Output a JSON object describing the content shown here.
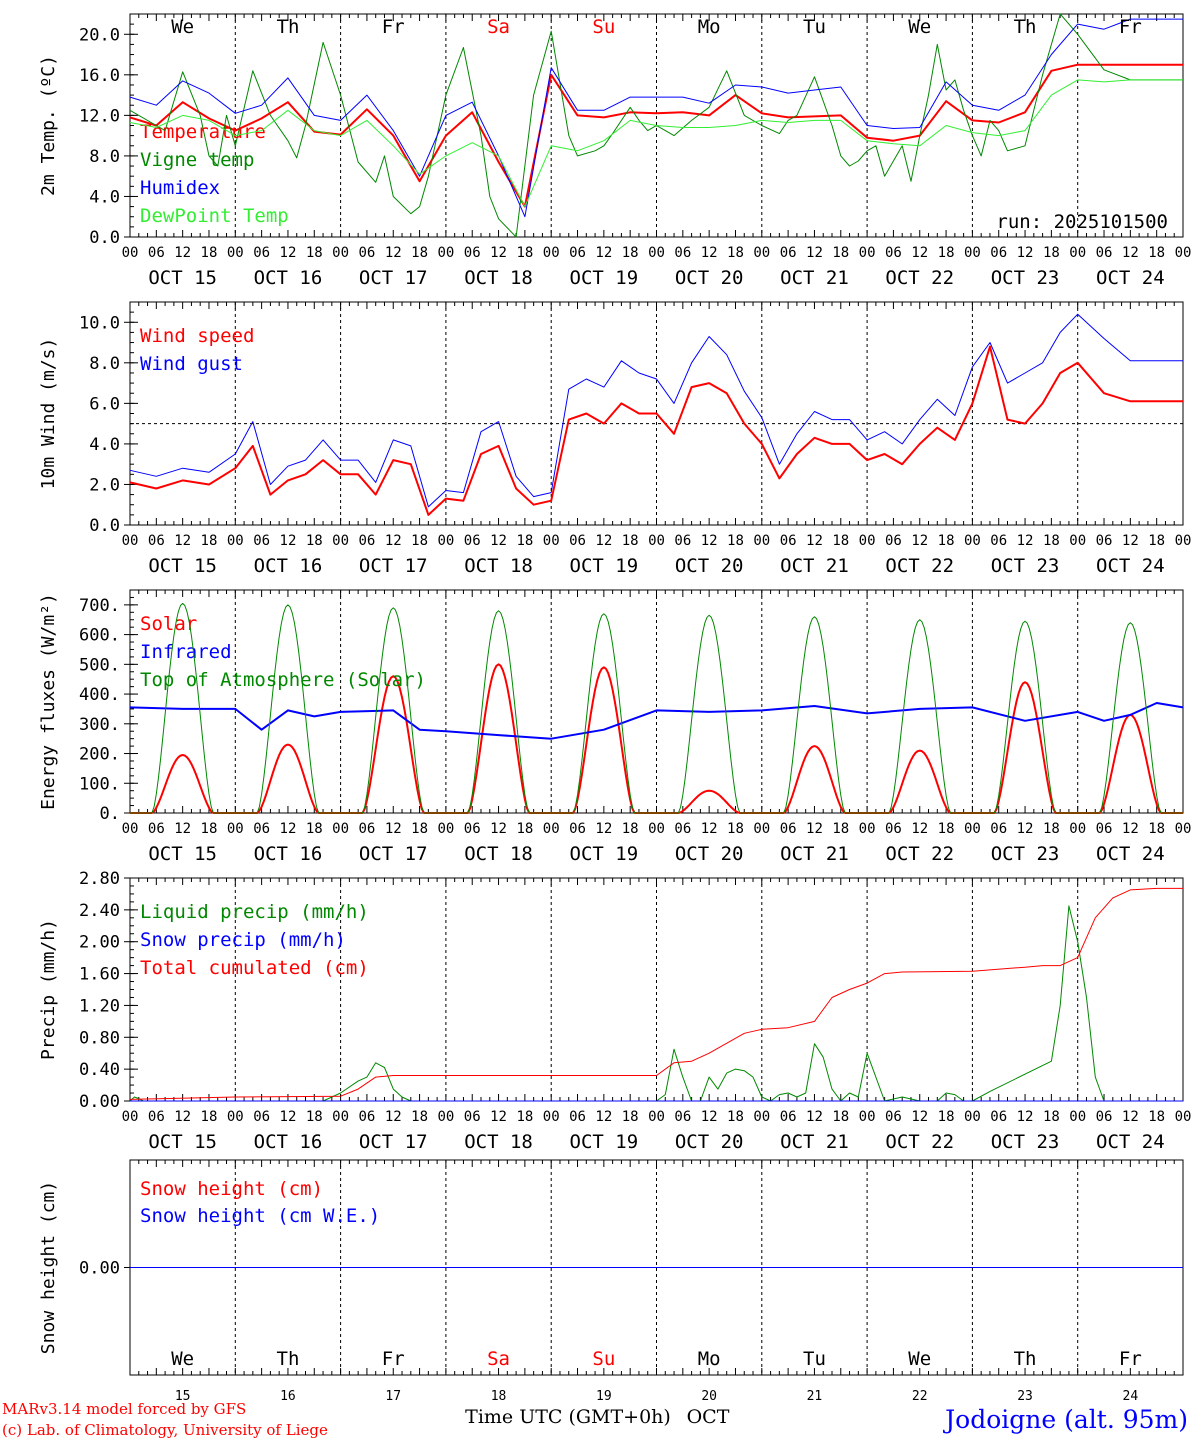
{
  "location": "Jodoigne (alt. 95m)",
  "credit": [
    "MARv3.14 model forced by GFS",
    "(c) Lab. of Climatology, University of Liege"
  ],
  "x_axis": {
    "title": "Time UTC (GMT+0h)",
    "month": "OCT",
    "hour_ticks": [
      "00",
      "06",
      "12",
      "18"
    ],
    "dates": [
      "OCT 15",
      "OCT 16",
      "OCT 17",
      "OCT 18",
      "OCT 19",
      "OCT 20",
      "OCT 21",
      "OCT 22",
      "OCT 23",
      "OCT 24"
    ],
    "weekdays": [
      "We",
      "Th",
      "Fr",
      "Sa",
      "Su",
      "Mo",
      "Tu",
      "We",
      "Th",
      "Fr"
    ],
    "weekend_days": [
      "Sa",
      "Su"
    ],
    "day_numbers": [
      "15",
      "16",
      "17",
      "18",
      "19",
      "20",
      "21",
      "22",
      "23",
      "24"
    ],
    "days": 10
  },
  "colors": {
    "red": "#ff0000",
    "darkgreen": "#008800",
    "blue": "#0000ff",
    "lightgreen": "#33ee33",
    "axis": "#000000"
  },
  "chart_data": [
    {
      "id": "temp",
      "type": "line",
      "ylabel": "2m Temp. (ºC)",
      "ylim": [
        0,
        22
      ],
      "yticks": [
        "0.0",
        "4.0",
        "8.0",
        "12.0",
        "16.0",
        "20.0"
      ],
      "note": "run: 2025101500",
      "series": [
        {
          "name": "Temperature",
          "color": "#ff0000",
          "width": 2,
          "x": [
            0,
            6,
            12,
            18,
            24,
            30,
            36,
            42,
            48,
            54,
            60,
            66,
            72,
            78,
            84,
            90,
            96,
            102,
            108,
            114,
            120,
            126,
            132,
            138,
            144,
            150,
            156,
            162,
            168,
            174,
            180,
            186,
            192,
            198,
            204,
            210,
            216,
            222,
            228,
            234,
            240
          ],
          "y": [
            11.8,
            11.0,
            13.3,
            11.7,
            10.5,
            11.7,
            13.3,
            10.4,
            10.1,
            12.6,
            10.0,
            5.5,
            10.0,
            12.3,
            7.4,
            3.0,
            16.0,
            12.0,
            11.8,
            12.3,
            12.2,
            12.3,
            12.0,
            14.0,
            12.2,
            11.8,
            11.9,
            12.0,
            9.8,
            9.5,
            10.0,
            13.4,
            11.5,
            11.3,
            12.3,
            16.4,
            17.0,
            17.0,
            17.0,
            17.0,
            17.0
          ]
        },
        {
          "name": "Vigne temp",
          "color": "#008800",
          "width": 1,
          "x": [
            0,
            6,
            8,
            12,
            16,
            18,
            20,
            22,
            24,
            28,
            32,
            36,
            38,
            40,
            44,
            48,
            52,
            56,
            58,
            60,
            64,
            66,
            68,
            72,
            76,
            80,
            82,
            84,
            88,
            92,
            96,
            100,
            102,
            106,
            108,
            110,
            114,
            116,
            118,
            120,
            124,
            128,
            132,
            136,
            140,
            144,
            148,
            150,
            152,
            156,
            160,
            162,
            164,
            166,
            168,
            170,
            172,
            176,
            178,
            180,
            182,
            184,
            186,
            188,
            190,
            192,
            194,
            196,
            198,
            200,
            204,
            208,
            212,
            214,
            216,
            222,
            228,
            234,
            240
          ],
          "y": [
            12.5,
            11.0,
            10.5,
            16.3,
            12.0,
            8.0,
            7.0,
            12.0,
            9.0,
            16.4,
            12.0,
            9.5,
            7.8,
            11.0,
            19.2,
            14.0,
            7.4,
            5.4,
            8.0,
            4.0,
            2.3,
            3.0,
            6.0,
            14.0,
            18.7,
            10.0,
            4.0,
            1.8,
            0.0,
            14.0,
            20.3,
            10.0,
            8.0,
            8.5,
            9.0,
            10.2,
            12.8,
            11.5,
            10.5,
            11.0,
            10.0,
            11.5,
            12.8,
            16.4,
            12.0,
            11.0,
            10.2,
            11.5,
            12.0,
            15.8,
            11.0,
            8.0,
            7.0,
            7.5,
            8.5,
            9.0,
            6.0,
            9.0,
            5.5,
            10.0,
            14.0,
            19.0,
            14.5,
            15.5,
            12.5,
            10.0,
            8.0,
            11.5,
            10.5,
            8.5,
            9.0,
            16.0,
            22.0,
            21.0,
            20.0,
            16.5,
            15.5,
            15.5,
            15.5
          ]
        },
        {
          "name": "Humidex",
          "color": "#0000ff",
          "width": 1,
          "x": [
            0,
            6,
            12,
            18,
            24,
            30,
            36,
            42,
            48,
            54,
            60,
            66,
            72,
            78,
            84,
            90,
            96,
            102,
            108,
            114,
            120,
            126,
            132,
            138,
            144,
            150,
            156,
            162,
            168,
            174,
            180,
            186,
            192,
            198,
            204,
            210,
            216,
            222,
            228,
            234,
            240
          ],
          "y": [
            13.8,
            13.0,
            15.4,
            14.2,
            12.2,
            13.0,
            15.7,
            12.0,
            11.5,
            14.0,
            10.5,
            6.0,
            12.0,
            13.3,
            8.0,
            2.0,
            16.7,
            12.5,
            12.5,
            13.8,
            13.8,
            13.8,
            13.2,
            15.0,
            14.8,
            14.2,
            14.5,
            14.8,
            11.0,
            10.7,
            10.8,
            15.3,
            13.0,
            12.5,
            14.0,
            18.0,
            21.0,
            20.5,
            21.5,
            21.5,
            21.5
          ]
        },
        {
          "name": "DewPoint Temp",
          "color": "#33ee33",
          "width": 1,
          "x": [
            0,
            6,
            12,
            18,
            24,
            30,
            36,
            42,
            48,
            54,
            60,
            66,
            72,
            78,
            84,
            90,
            96,
            102,
            108,
            114,
            120,
            126,
            132,
            138,
            144,
            150,
            156,
            162,
            168,
            174,
            180,
            186,
            192,
            198,
            204,
            210,
            216,
            222,
            228,
            234,
            240
          ],
          "y": [
            11.3,
            10.8,
            12.0,
            11.5,
            10.0,
            10.5,
            12.5,
            10.5,
            10.0,
            11.5,
            9.0,
            6.2,
            8.0,
            9.3,
            8.0,
            3.0,
            9.0,
            8.5,
            9.5,
            11.5,
            11.0,
            10.8,
            10.8,
            11.0,
            11.5,
            11.3,
            11.5,
            11.5,
            9.5,
            9.2,
            9.0,
            11.0,
            10.3,
            10.0,
            10.5,
            14.0,
            15.5,
            15.3,
            15.5,
            15.5,
            15.5
          ]
        }
      ]
    },
    {
      "id": "wind",
      "type": "line",
      "ylabel": "10m Wind (m/s)",
      "ylim": [
        0,
        11
      ],
      "yticks": [
        "0.0",
        "2.0",
        "4.0",
        "6.0",
        "8.0",
        "10.0"
      ],
      "ref_line": 5,
      "series": [
        {
          "name": "Wind speed",
          "color": "#ff0000",
          "width": 2,
          "x": [
            0,
            6,
            12,
            18,
            24,
            28,
            32,
            36,
            40,
            44,
            48,
            52,
            56,
            60,
            64,
            68,
            72,
            76,
            80,
            84,
            88,
            92,
            96,
            100,
            104,
            108,
            112,
            116,
            120,
            124,
            128,
            132,
            136,
            140,
            144,
            148,
            152,
            156,
            160,
            164,
            168,
            172,
            176,
            180,
            184,
            188,
            192,
            196,
            200,
            204,
            208,
            212,
            216,
            222,
            228,
            234,
            240
          ],
          "y": [
            2.1,
            1.8,
            2.2,
            2.0,
            2.8,
            3.9,
            1.5,
            2.2,
            2.5,
            3.2,
            2.5,
            2.5,
            1.5,
            3.2,
            3.0,
            0.5,
            1.3,
            1.2,
            3.5,
            3.9,
            1.8,
            1.0,
            1.2,
            5.2,
            5.5,
            5.0,
            6.0,
            5.5,
            5.5,
            4.5,
            6.8,
            7.0,
            6.5,
            5.0,
            4.0,
            2.3,
            3.5,
            4.3,
            4.0,
            4.0,
            3.2,
            3.5,
            3.0,
            4.0,
            4.8,
            4.2,
            6.0,
            8.8,
            5.2,
            5.0,
            6.0,
            7.5,
            8.0,
            6.5,
            6.1,
            6.1,
            6.1
          ]
        },
        {
          "name": "Wind gust",
          "color": "#0000ff",
          "width": 1,
          "x": [
            0,
            6,
            12,
            18,
            24,
            28,
            32,
            36,
            40,
            44,
            48,
            52,
            56,
            60,
            64,
            68,
            72,
            76,
            80,
            84,
            88,
            92,
            96,
            100,
            104,
            108,
            112,
            116,
            120,
            124,
            128,
            132,
            136,
            140,
            144,
            148,
            152,
            156,
            160,
            164,
            168,
            172,
            176,
            180,
            184,
            188,
            192,
            196,
            200,
            204,
            208,
            212,
            216,
            222,
            228,
            234,
            240
          ],
          "y": [
            2.7,
            2.4,
            2.8,
            2.6,
            3.5,
            5.1,
            2.0,
            2.9,
            3.2,
            4.2,
            3.2,
            3.2,
            2.1,
            4.2,
            3.9,
            0.9,
            1.7,
            1.6,
            4.6,
            5.1,
            2.4,
            1.4,
            1.6,
            6.7,
            7.2,
            6.8,
            8.1,
            7.5,
            7.2,
            6.0,
            8.0,
            9.3,
            8.4,
            6.6,
            5.3,
            3.0,
            4.5,
            5.6,
            5.2,
            5.2,
            4.2,
            4.6,
            4.0,
            5.2,
            6.2,
            5.4,
            7.8,
            9.0,
            7.0,
            7.5,
            8.0,
            9.5,
            10.4,
            9.2,
            8.1,
            8.1,
            8.1
          ]
        }
      ]
    },
    {
      "id": "flux",
      "type": "line",
      "ylabel": "Energy fluxes (W/m²)",
      "ylim": [
        0,
        750
      ],
      "yticks": [
        "0.",
        "100.",
        "200.",
        "300.",
        "400.",
        "500.",
        "600.",
        "700."
      ],
      "series": [
        {
          "name": "Solar",
          "color": "#ff0000",
          "width": 2,
          "day_peaks": [
            195,
            230,
            460,
            500,
            490,
            75,
            225,
            210,
            440,
            330
          ],
          "day_profile": "bell"
        },
        {
          "name": "Infrared",
          "color": "#0000ff",
          "width": 2,
          "x": [
            0,
            12,
            24,
            30,
            36,
            42,
            48,
            60,
            66,
            72,
            84,
            96,
            108,
            120,
            132,
            144,
            156,
            168,
            180,
            192,
            204,
            216,
            222,
            228,
            234,
            240
          ],
          "y": [
            355,
            350,
            350,
            280,
            345,
            325,
            340,
            345,
            280,
            275,
            262,
            250,
            280,
            345,
            340,
            345,
            360,
            335,
            350,
            355,
            310,
            340,
            310,
            330,
            370,
            355
          ]
        },
        {
          "name": "Top of Atmosphere (Solar)",
          "color": "#008800",
          "width": 1,
          "day_peaks": [
            705,
            700,
            690,
            680,
            670,
            665,
            660,
            650,
            645,
            640
          ],
          "day_profile": "bell"
        }
      ]
    },
    {
      "id": "precip",
      "type": "line",
      "ylabel": "Precip (mm/h)",
      "ylim": [
        0,
        2.8
      ],
      "yticks": [
        "0.00",
        "0.40",
        "0.80",
        "1.20",
        "1.60",
        "2.00",
        "2.40",
        "2.80"
      ],
      "series": [
        {
          "name": "Liquid precip (mm/h)",
          "color": "#008800",
          "width": 1,
          "x": [
            0,
            1,
            2,
            3,
            44,
            48,
            52,
            54,
            56,
            58,
            60,
            62,
            64,
            120,
            122,
            124,
            126,
            128,
            130,
            132,
            134,
            136,
            138,
            140,
            142,
            144,
            146,
            148,
            150,
            152,
            154,
            156,
            158,
            160,
            162,
            164,
            166,
            168,
            172,
            176,
            180,
            184,
            186,
            188,
            190,
            192,
            196,
            210,
            212,
            214,
            216,
            218,
            220,
            222,
            240
          ],
          "y": [
            0,
            0.05,
            0.03,
            0,
            0,
            0.1,
            0.25,
            0.3,
            0.48,
            0.42,
            0.15,
            0.05,
            0,
            0,
            0.08,
            0.65,
            0.3,
            0,
            0,
            0.3,
            0.15,
            0.35,
            0.4,
            0.38,
            0.3,
            0.05,
            0.0,
            0.08,
            0.1,
            0.05,
            0.1,
            0.72,
            0.55,
            0.15,
            0.0,
            0.1,
            0.05,
            0.6,
            0.0,
            0.05,
            0.0,
            0.0,
            0.1,
            0.08,
            0.0,
            0.0,
            0.12,
            0.5,
            1.2,
            2.45,
            2.0,
            1.3,
            0.3,
            0.0,
            0.0
          ]
        },
        {
          "name": "Snow precip (mm/h)",
          "color": "#0000ff",
          "width": 1,
          "x": [
            0,
            240
          ],
          "y": [
            0,
            0
          ]
        },
        {
          "name": "Total cumulated (cm)",
          "color": "#ff0000",
          "width": 1,
          "x": [
            0,
            24,
            48,
            52,
            56,
            60,
            120,
            124,
            128,
            132,
            140,
            144,
            150,
            156,
            160,
            164,
            168,
            172,
            176,
            192,
            204,
            208,
            212,
            216,
            220,
            224,
            228,
            234,
            240
          ],
          "y": [
            0.02,
            0.05,
            0.06,
            0.15,
            0.3,
            0.32,
            0.32,
            0.48,
            0.5,
            0.6,
            0.85,
            0.9,
            0.92,
            1.0,
            1.3,
            1.4,
            1.48,
            1.6,
            1.62,
            1.63,
            1.68,
            1.7,
            1.7,
            1.8,
            2.3,
            2.55,
            2.65,
            2.67,
            2.67
          ]
        }
      ]
    },
    {
      "id": "snow",
      "type": "line",
      "ylabel": "Snow height (cm)",
      "ylim": [
        -1,
        1
      ],
      "yticks": [
        "0.00"
      ],
      "series": [
        {
          "name": "Snow height (cm)",
          "color": "#ff0000",
          "width": 1,
          "x": [
            0,
            240
          ],
          "y": [
            0,
            0
          ]
        },
        {
          "name": "Snow height (cm W.E.)",
          "color": "#0000ff",
          "width": 1,
          "x": [
            0,
            240
          ],
          "y": [
            0,
            0
          ]
        }
      ]
    }
  ]
}
